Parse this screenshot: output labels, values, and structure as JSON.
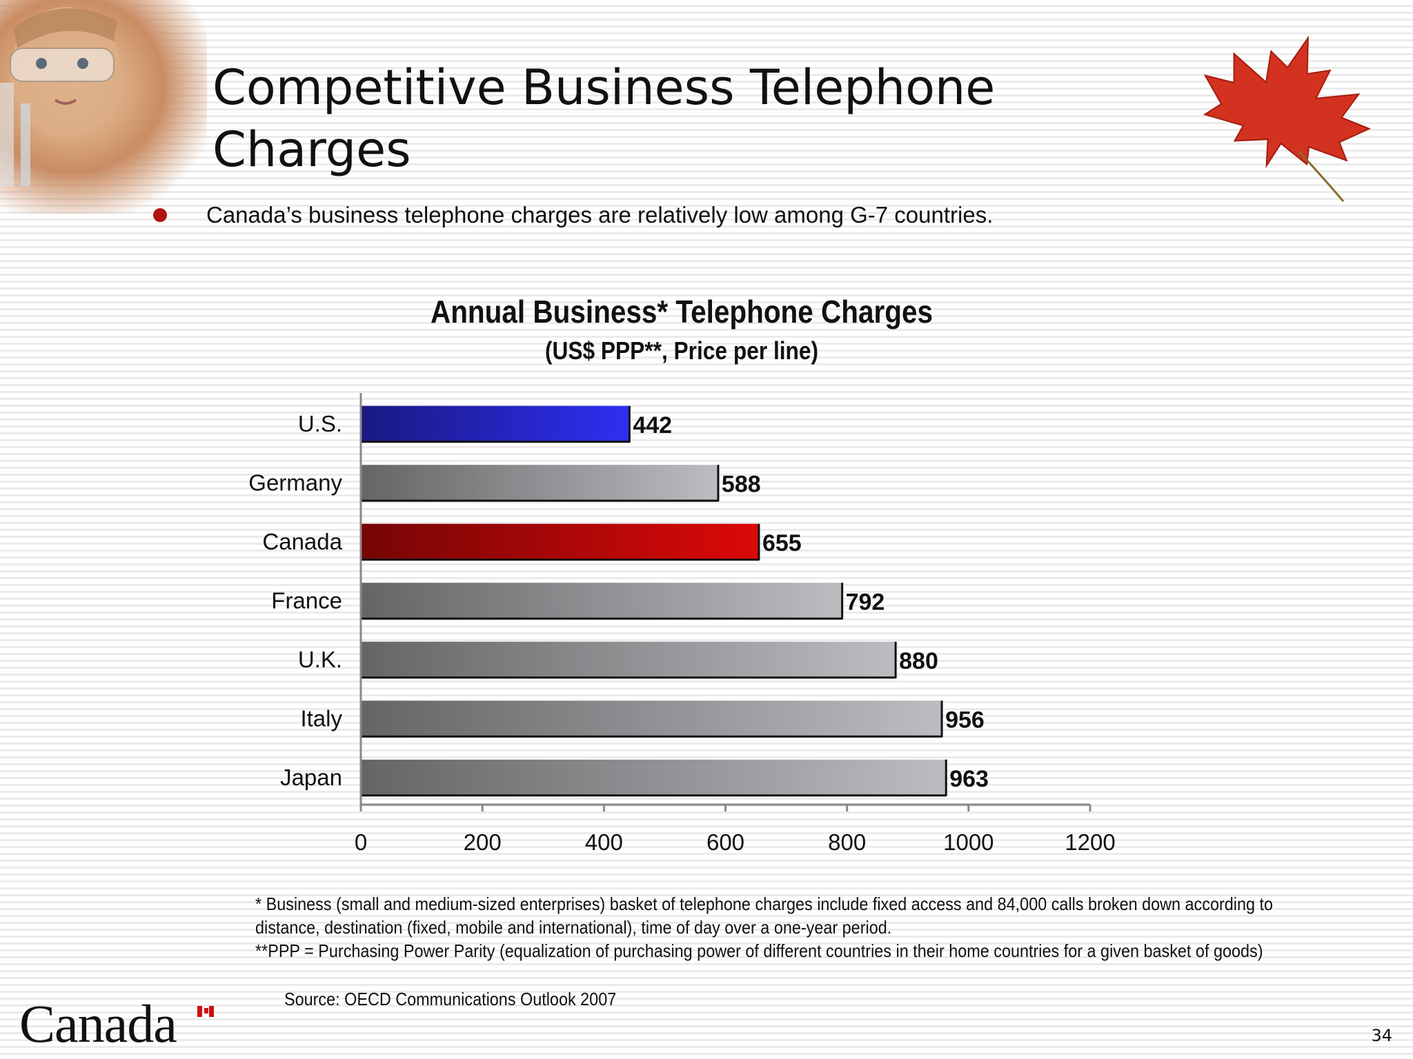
{
  "slide": {
    "title": "Competitive Business Telephone Charges",
    "bullet": "Canada’s business telephone charges are relatively low among G-7 countries.",
    "footnotes": [
      "* Business (small and medium-sized enterprises) basket of telephone charges include fixed access and 84,000 calls broken down according to",
      "distance, destination (fixed, mobile and international), time of day over a one-year period.",
      "**PPP = Purchasing Power Parity (equalization of purchasing power of different countries in their home countries for a given basket of goods)"
    ],
    "source": "Source: OECD Communications Outlook 2007",
    "logo_text": "Canada",
    "page_number": "34",
    "accent_color": "#b21212",
    "icons": [
      "maple-leaf-icon",
      "canada-flag-icon",
      "bullet-dot-icon"
    ]
  },
  "chart_data": {
    "type": "bar",
    "orientation": "horizontal",
    "title": "Annual Business* Telephone Charges",
    "subtitle": "(US$ PPP**, Price per line)",
    "categories": [
      "U.S.",
      "Germany",
      "Canada",
      "France",
      "U.K.",
      "Italy",
      "Japan"
    ],
    "values": [
      442,
      588,
      655,
      792,
      880,
      956,
      963
    ],
    "value_labels": [
      "442",
      "588",
      "655",
      "792",
      "880",
      "956",
      "963"
    ],
    "bar_colors": [
      "#2a2ad8",
      "#a8a8ac",
      "#c40808",
      "#a8a8ac",
      "#a8a8ac",
      "#a8a8ac",
      "#a8a8ac"
    ],
    "xlim": [
      0,
      1200
    ],
    "xticks": [
      "0",
      "200",
      "400",
      "600",
      "800",
      "1000",
      "1200"
    ],
    "grid": false,
    "legend": "none"
  }
}
